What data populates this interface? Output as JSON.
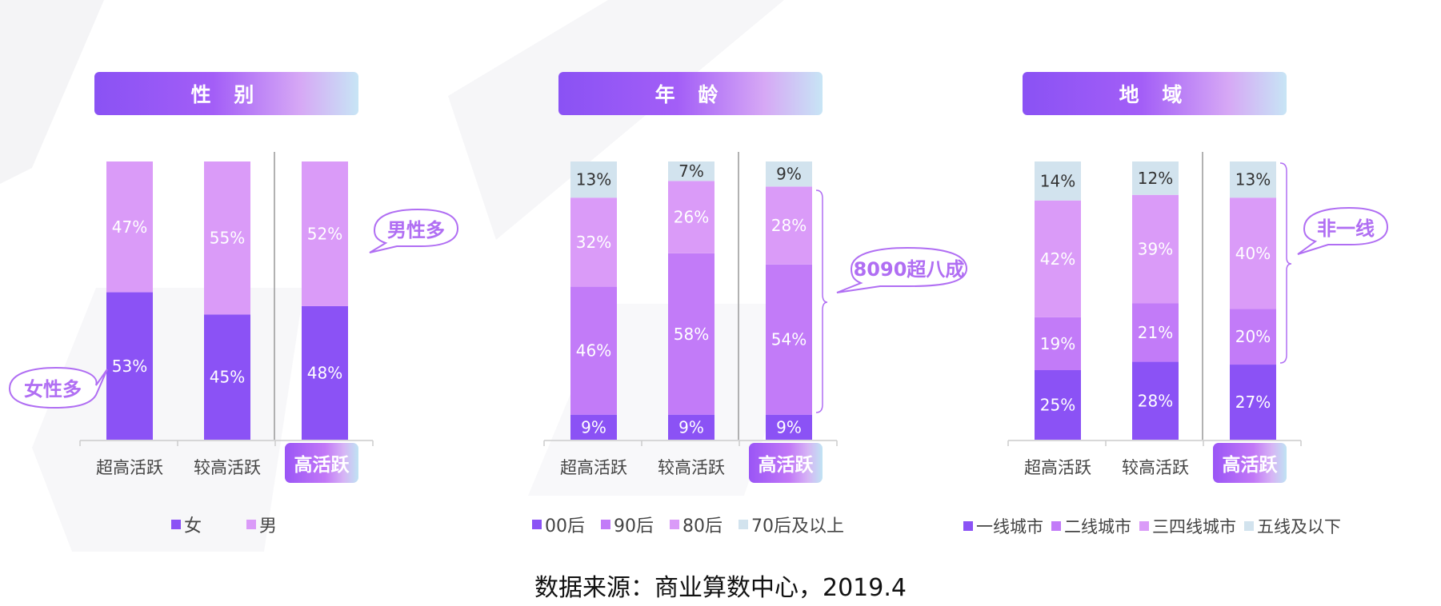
{
  "colors": {
    "purple_dark": "#8b52f5",
    "purple_mid": "#c27bf8",
    "purple_light": "#da9bf8",
    "blue_light": "#d2e3ee",
    "callout": "#b06ef3"
  },
  "charts": [
    {
      "title": "性 别",
      "callout_left": "女性多",
      "callout_right": "男性多"
    },
    {
      "title": "年 龄",
      "callout_right": "8090超八成"
    },
    {
      "title": "地 域",
      "callout_right": "非一线"
    }
  ],
  "chart_data": [
    {
      "type": "bar",
      "stacked": true,
      "normalized": true,
      "title": "性 别",
      "categories": [
        "超高活跃",
        "较高活跃",
        "高活跃"
      ],
      "highlight_category": "高活跃",
      "legend_position": "bottom",
      "series": [
        {
          "name": "女",
          "values": [
            53,
            45,
            48
          ],
          "color": "#8b52f5",
          "label_color": "#ffffff"
        },
        {
          "name": "男",
          "values": [
            47,
            55,
            52
          ],
          "color": "#da9bf8",
          "label_color": "#ffffff"
        }
      ]
    },
    {
      "type": "bar",
      "stacked": true,
      "normalized": true,
      "title": "年 龄",
      "categories": [
        "超高活跃",
        "较高活跃",
        "高活跃"
      ],
      "highlight_category": "高活跃",
      "legend_position": "bottom",
      "series": [
        {
          "name": "00后",
          "values": [
            9,
            9,
            9
          ],
          "color": "#8b52f5",
          "label_color": "#ffffff"
        },
        {
          "name": "90后",
          "values": [
            46,
            58,
            54
          ],
          "color": "#c27bf8",
          "label_color": "#ffffff"
        },
        {
          "name": "80后",
          "values": [
            32,
            26,
            28
          ],
          "color": "#da9bf8",
          "label_color": "#ffffff"
        },
        {
          "name": "70后及以上",
          "values": [
            13,
            7,
            9
          ],
          "color": "#d2e3ee",
          "label_color": "#333333"
        }
      ]
    },
    {
      "type": "bar",
      "stacked": true,
      "normalized": true,
      "title": "地 域",
      "categories": [
        "超高活跃",
        "较高活跃",
        "高活跃"
      ],
      "highlight_category": "高活跃",
      "legend_position": "bottom",
      "series": [
        {
          "name": "一线城市",
          "values": [
            25,
            28,
            27
          ],
          "color": "#8b52f5",
          "label_color": "#ffffff"
        },
        {
          "name": "二线城市",
          "values": [
            19,
            21,
            20
          ],
          "color": "#c27bf8",
          "label_color": "#ffffff"
        },
        {
          "name": "三四线城市",
          "values": [
            42,
            39,
            40
          ],
          "color": "#da9bf8",
          "label_color": "#ffffff"
        },
        {
          "name": "五线及以下",
          "values": [
            14,
            12,
            13
          ],
          "color": "#d2e3ee",
          "label_color": "#333333"
        }
      ]
    }
  ],
  "source": "数据来源：商业算数中心，2019.4"
}
